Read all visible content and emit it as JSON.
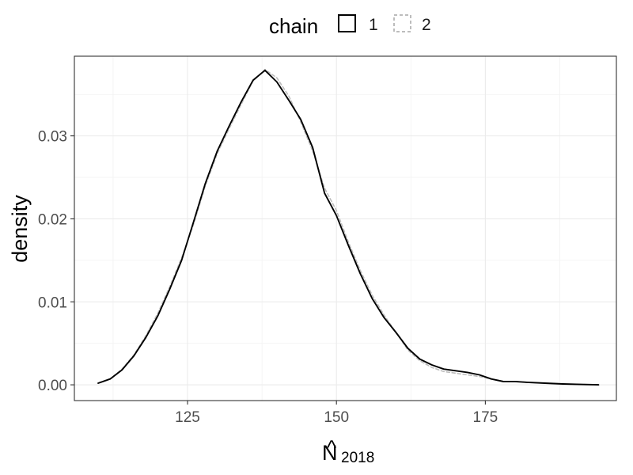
{
  "chart_data": {
    "type": "line",
    "xlabel": "N",
    "xlabel_hat": "^",
    "xlabel_subscript": "2018",
    "ylabel": "density",
    "xlim": [
      106,
      197
    ],
    "ylim": [
      -0.0019,
      0.0396
    ],
    "grid": true,
    "legend": {
      "title": "chain",
      "position": "top",
      "entries": [
        "1",
        "2"
      ]
    },
    "x_ticks": [
      125,
      150,
      175
    ],
    "x_tick_labels": [
      "125",
      "150",
      "175"
    ],
    "y_ticks": [
      0.0,
      0.01,
      0.02,
      0.03
    ],
    "y_tick_labels": [
      "0.00",
      "0.01",
      "0.02",
      "0.03"
    ],
    "series": [
      {
        "name": "1",
        "color": "#000000",
        "dash": "solid",
        "x": [
          110,
          112,
          114,
          116,
          118,
          120,
          122,
          124,
          126,
          128,
          130,
          132,
          134,
          136,
          138,
          140,
          142,
          144,
          146,
          148,
          150,
          152,
          154,
          156,
          158,
          160,
          162,
          164,
          166,
          168,
          170,
          172,
          174,
          176,
          178,
          180,
          182,
          185,
          188,
          191,
          194
        ],
        "y": [
          0.0002,
          0.0007,
          0.0018,
          0.0035,
          0.0057,
          0.0083,
          0.0115,
          0.015,
          0.0196,
          0.0243,
          0.0282,
          0.0312,
          0.0341,
          0.0367,
          0.0379,
          0.0365,
          0.0343,
          0.032,
          0.0286,
          0.0231,
          0.0204,
          0.0168,
          0.0134,
          0.0104,
          0.0081,
          0.0063,
          0.0044,
          0.0031,
          0.0024,
          0.0019,
          0.0017,
          0.0015,
          0.0012,
          0.0007,
          0.0004,
          0.0004,
          0.0003,
          0.0002,
          0.0001,
          5e-05,
          0.0
        ]
      },
      {
        "name": "2",
        "color": "#bdbdbd",
        "dash": "dashed",
        "x": [
          110,
          112,
          114,
          116,
          118,
          120,
          122,
          124,
          126,
          128,
          130,
          132,
          134,
          136,
          138,
          140,
          142,
          144,
          146,
          148,
          150,
          152,
          154,
          156,
          158,
          160,
          162,
          164,
          166,
          168,
          170,
          172,
          174,
          176,
          178,
          180,
          182,
          185,
          188,
          191,
          194
        ],
        "y": [
          0.0002,
          0.0007,
          0.0019,
          0.0036,
          0.0059,
          0.0086,
          0.0118,
          0.0153,
          0.0193,
          0.024,
          0.0279,
          0.0309,
          0.0338,
          0.0366,
          0.038,
          0.037,
          0.0348,
          0.0317,
          0.0282,
          0.0237,
          0.021,
          0.0172,
          0.0138,
          0.0108,
          0.0084,
          0.0063,
          0.0042,
          0.0029,
          0.0021,
          0.0016,
          0.0014,
          0.0012,
          0.001,
          0.0007,
          0.0004,
          0.0004,
          0.0003,
          0.0002,
          0.0001,
          5e-05,
          0.0
        ]
      }
    ]
  }
}
